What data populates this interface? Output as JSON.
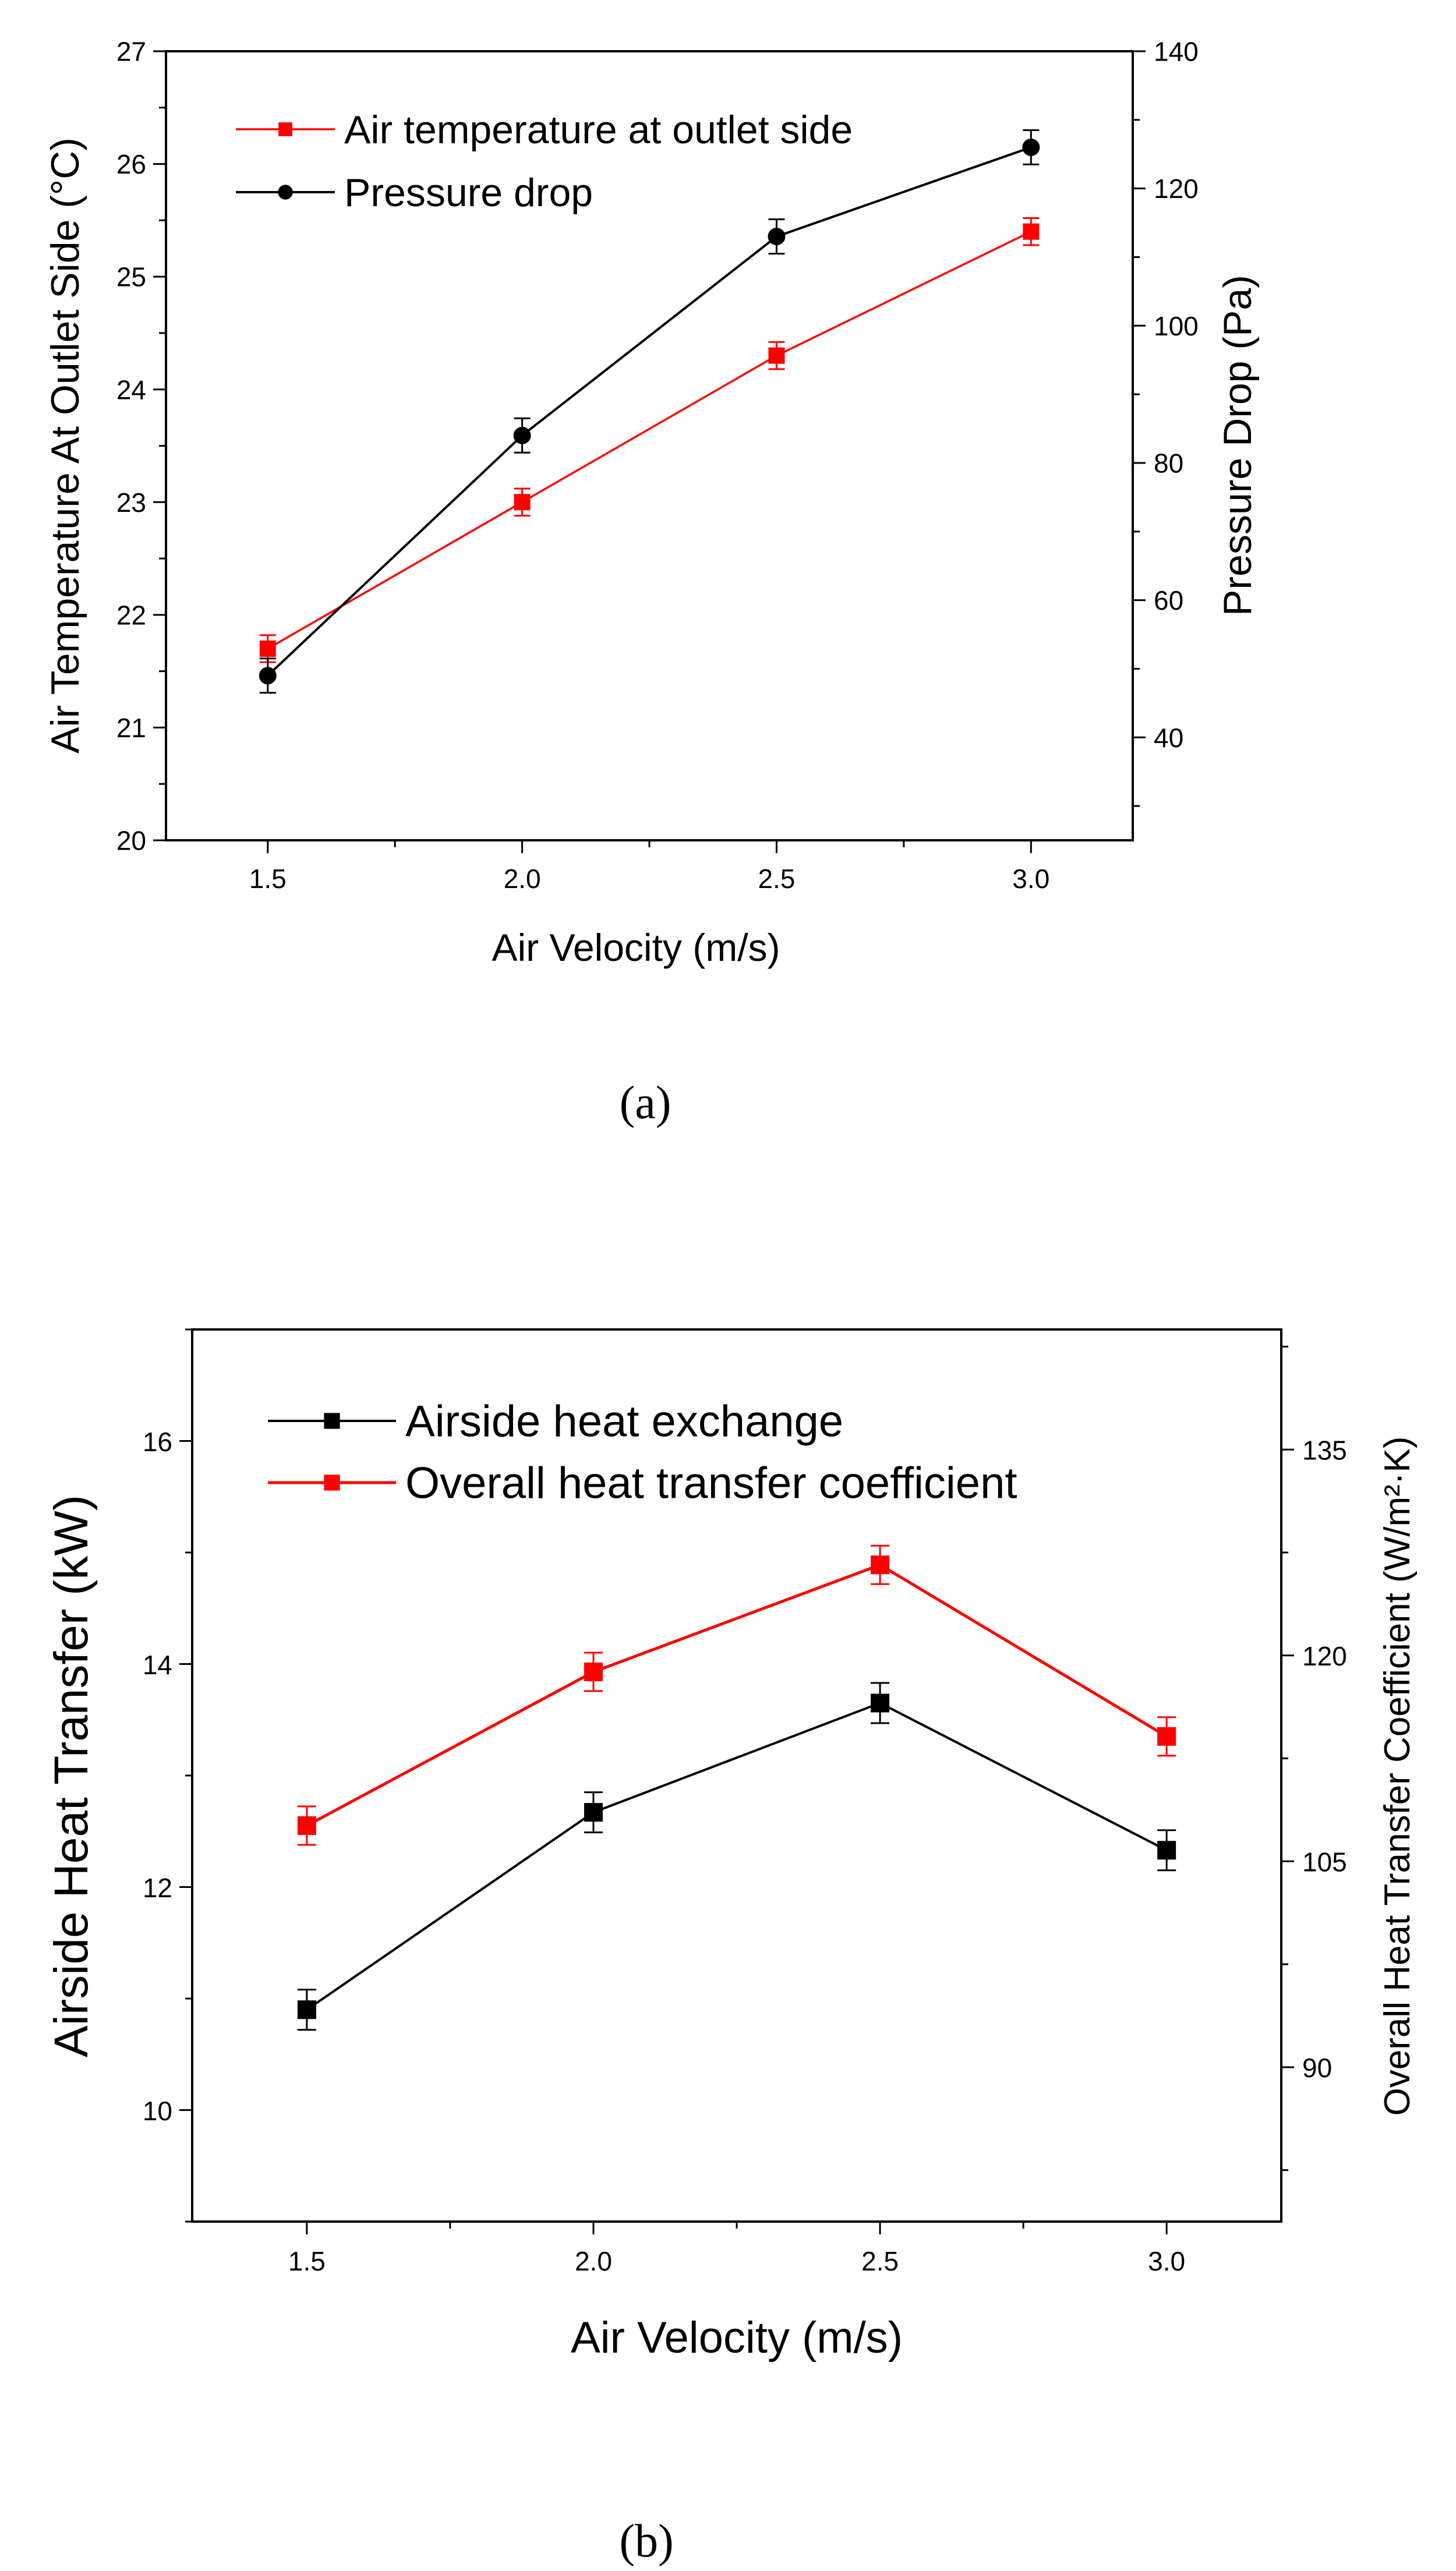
{
  "chart_data": [
    {
      "panel": "a",
      "type": "line",
      "caption": "(a)",
      "x": [
        1.5,
        2.0,
        2.5,
        3.0
      ],
      "xlabel": "Air Velocity  (m/s)",
      "xlim": [
        1.3,
        3.2
      ],
      "xticks": [
        "1.5",
        "2.0",
        "2.5",
        "3.0"
      ],
      "ylabel_left": "Air Temperature At Outlet Side (°C)",
      "ylim_left": [
        20,
        27
      ],
      "yticks_left": [
        "20",
        "21",
        "22",
        "23",
        "24",
        "25",
        "26",
        "27"
      ],
      "ylabel_right": "Pressure Drop (Pa)",
      "ylim_right": [
        25,
        140
      ],
      "yticks_right": [
        "40",
        "60",
        "80",
        "100",
        "120",
        "140"
      ],
      "legend_position": "top-left",
      "series": [
        {
          "name": "Air temperature at outlet side",
          "axis": "left",
          "color": "#ff0000",
          "marker": "square",
          "values": [
            21.7,
            23.0,
            24.3,
            25.4
          ],
          "error": [
            0.12,
            0.12,
            0.12,
            0.12
          ]
        },
        {
          "name": "Pressure drop",
          "axis": "right",
          "color": "#000000",
          "marker": "circle",
          "values": [
            49,
            84,
            113,
            126
          ],
          "error": [
            2.5,
            2.5,
            2.5,
            2.5
          ]
        }
      ]
    },
    {
      "panel": "b",
      "type": "line",
      "caption": "(b)",
      "x": [
        1.5,
        2.0,
        2.5,
        3.0
      ],
      "xlabel": "Air Velocity  (m/s)",
      "xlim": [
        1.3,
        3.2
      ],
      "xticks": [
        "1.5",
        "2.0",
        "2.5",
        "3.0"
      ],
      "ylabel_left": "Airside Heat Transfer  (kW)",
      "ylim_left": [
        9,
        17
      ],
      "yticks_left": [
        "10",
        "12",
        "14",
        "16"
      ],
      "ylabel_right": "Overall Heat Transfer Coefficient (W/m²·K)",
      "ylim_right": [
        78.75,
        143.75
      ],
      "yticks_right": [
        "90",
        "105",
        "120",
        "135"
      ],
      "legend_position": "top-left",
      "series": [
        {
          "name": "Airside heat exchange",
          "axis": "left",
          "color": "#000000",
          "marker": "square",
          "values": [
            10.9,
            12.67,
            13.65,
            12.33
          ],
          "error": [
            0.18,
            0.18,
            0.18,
            0.18
          ]
        },
        {
          "name": "Overall heat transfer coefficient",
          "axis": "right",
          "color": "#ff0000",
          "marker": "square",
          "values": [
            107.6,
            118.8,
            126.6,
            114.1
          ],
          "error": [
            1.4,
            1.4,
            1.4,
            1.4
          ]
        }
      ]
    }
  ]
}
